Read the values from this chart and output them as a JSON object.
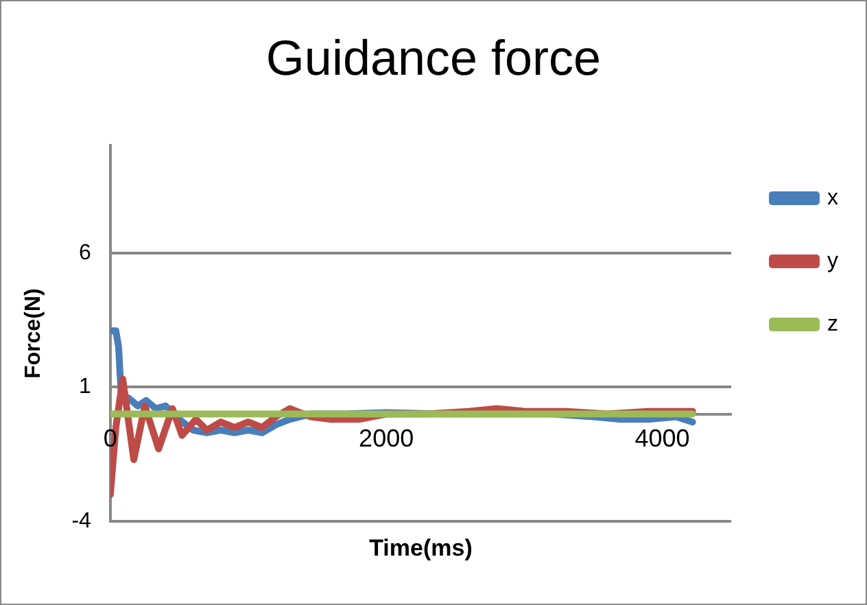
{
  "chart_data": {
    "type": "line",
    "title": "Guidance force",
    "xlabel": "Time(ms)",
    "ylabel": "Force(N)",
    "xlim": [
      0,
      4500
    ],
    "xticks": [
      0,
      2000,
      4000
    ],
    "ylim": [
      -4,
      10
    ],
    "yticks": [
      -4,
      1,
      6
    ],
    "grid": "y",
    "legend": "right",
    "marker": "none",
    "line_style": "solid",
    "series": [
      {
        "name": "x",
        "color": "#4a7ebb",
        "x": [
          0,
          40,
          60,
          80,
          130,
          200,
          260,
          330,
          400,
          500,
          600,
          700,
          800,
          900,
          1000,
          1100,
          1200,
          1300,
          1450,
          1700,
          2000,
          2400,
          2800,
          3200,
          3500,
          3700,
          3900,
          4100,
          4220
        ],
        "values": [
          3.1,
          3.1,
          2.5,
          0.6,
          0.6,
          0.3,
          0.5,
          0.2,
          0.3,
          -0.2,
          -0.6,
          -0.7,
          -0.6,
          -0.7,
          -0.6,
          -0.7,
          -0.4,
          -0.2,
          0,
          0,
          0.05,
          0,
          0,
          0,
          -0.1,
          -0.2,
          -0.2,
          -0.1,
          -0.3
        ]
      },
      {
        "name": "y",
        "color": "#be4b48",
        "x": [
          0,
          40,
          90,
          170,
          250,
          350,
          450,
          520,
          620,
          700,
          800,
          900,
          1000,
          1100,
          1200,
          1300,
          1450,
          1600,
          1800,
          2000,
          2300,
          2600,
          2800,
          3000,
          3300,
          3600,
          3900,
          4220
        ],
        "values": [
          -3.0,
          -0.5,
          1.3,
          -1.7,
          0.3,
          -1.3,
          0.2,
          -0.8,
          -0.2,
          -0.6,
          -0.3,
          -0.5,
          -0.3,
          -0.5,
          -0.1,
          0.2,
          -0.1,
          -0.2,
          -0.2,
          0,
          0,
          0.1,
          0.2,
          0.1,
          0.1,
          0,
          0.1,
          0.1
        ]
      },
      {
        "name": "z",
        "color": "#9bbb59",
        "x": [
          0,
          4220
        ],
        "values": [
          0,
          0
        ]
      }
    ]
  }
}
